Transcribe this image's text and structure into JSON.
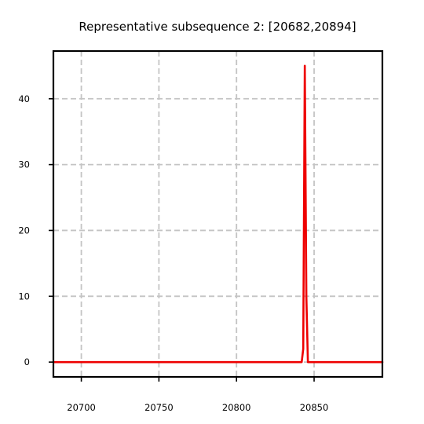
{
  "chart_data": {
    "type": "line",
    "title": "Representative subsequence 2: [20682,20894]",
    "xlabel": "",
    "ylabel": "",
    "xlim": [
      20682,
      20894
    ],
    "ylim": [
      -2.25,
      47.25
    ],
    "xticks": [
      20700,
      20750,
      20800,
      20850
    ],
    "yticks": [
      0,
      10,
      20,
      30,
      40
    ],
    "grid": true,
    "grid_style": "dashed",
    "legend": "none",
    "line_color": "#ee0000",
    "series": [
      {
        "x": [
          20682,
          20842,
          20843,
          20844,
          20845,
          20846,
          20894
        ],
        "values": [
          0,
          0,
          2,
          45,
          10,
          0,
          0
        ]
      }
    ]
  }
}
